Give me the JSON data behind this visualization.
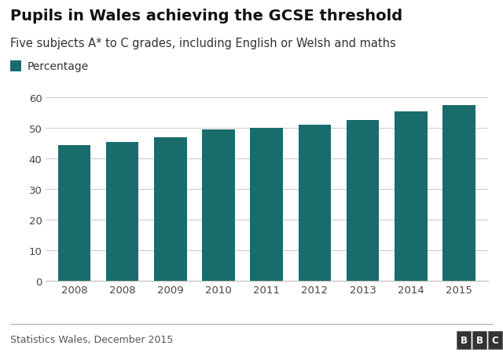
{
  "title": "Pupils in Wales achieving the GCSE threshold",
  "subtitle": "Five subjects A* to C grades, including English or Welsh and maths",
  "legend_label": "Percentage",
  "categories": [
    "2008",
    "2008",
    "2009",
    "2010",
    "2011",
    "2012",
    "2013",
    "2014",
    "2015"
  ],
  "values": [
    44.5,
    45.5,
    47.0,
    49.5,
    50.1,
    51.1,
    52.5,
    55.4,
    57.6
  ],
  "bar_color": "#1a6b6b",
  "background_color": "#ffffff",
  "plot_bg_color": "#ffffff",
  "ylim": [
    0,
    65
  ],
  "yticks": [
    0,
    10,
    20,
    30,
    40,
    50,
    60
  ],
  "footer_left": "Statistics Wales, December 2015",
  "footer_right": "BBC",
  "title_fontsize": 14,
  "subtitle_fontsize": 10.5,
  "tick_fontsize": 9.5,
  "legend_fontsize": 10,
  "footer_fontsize": 9
}
